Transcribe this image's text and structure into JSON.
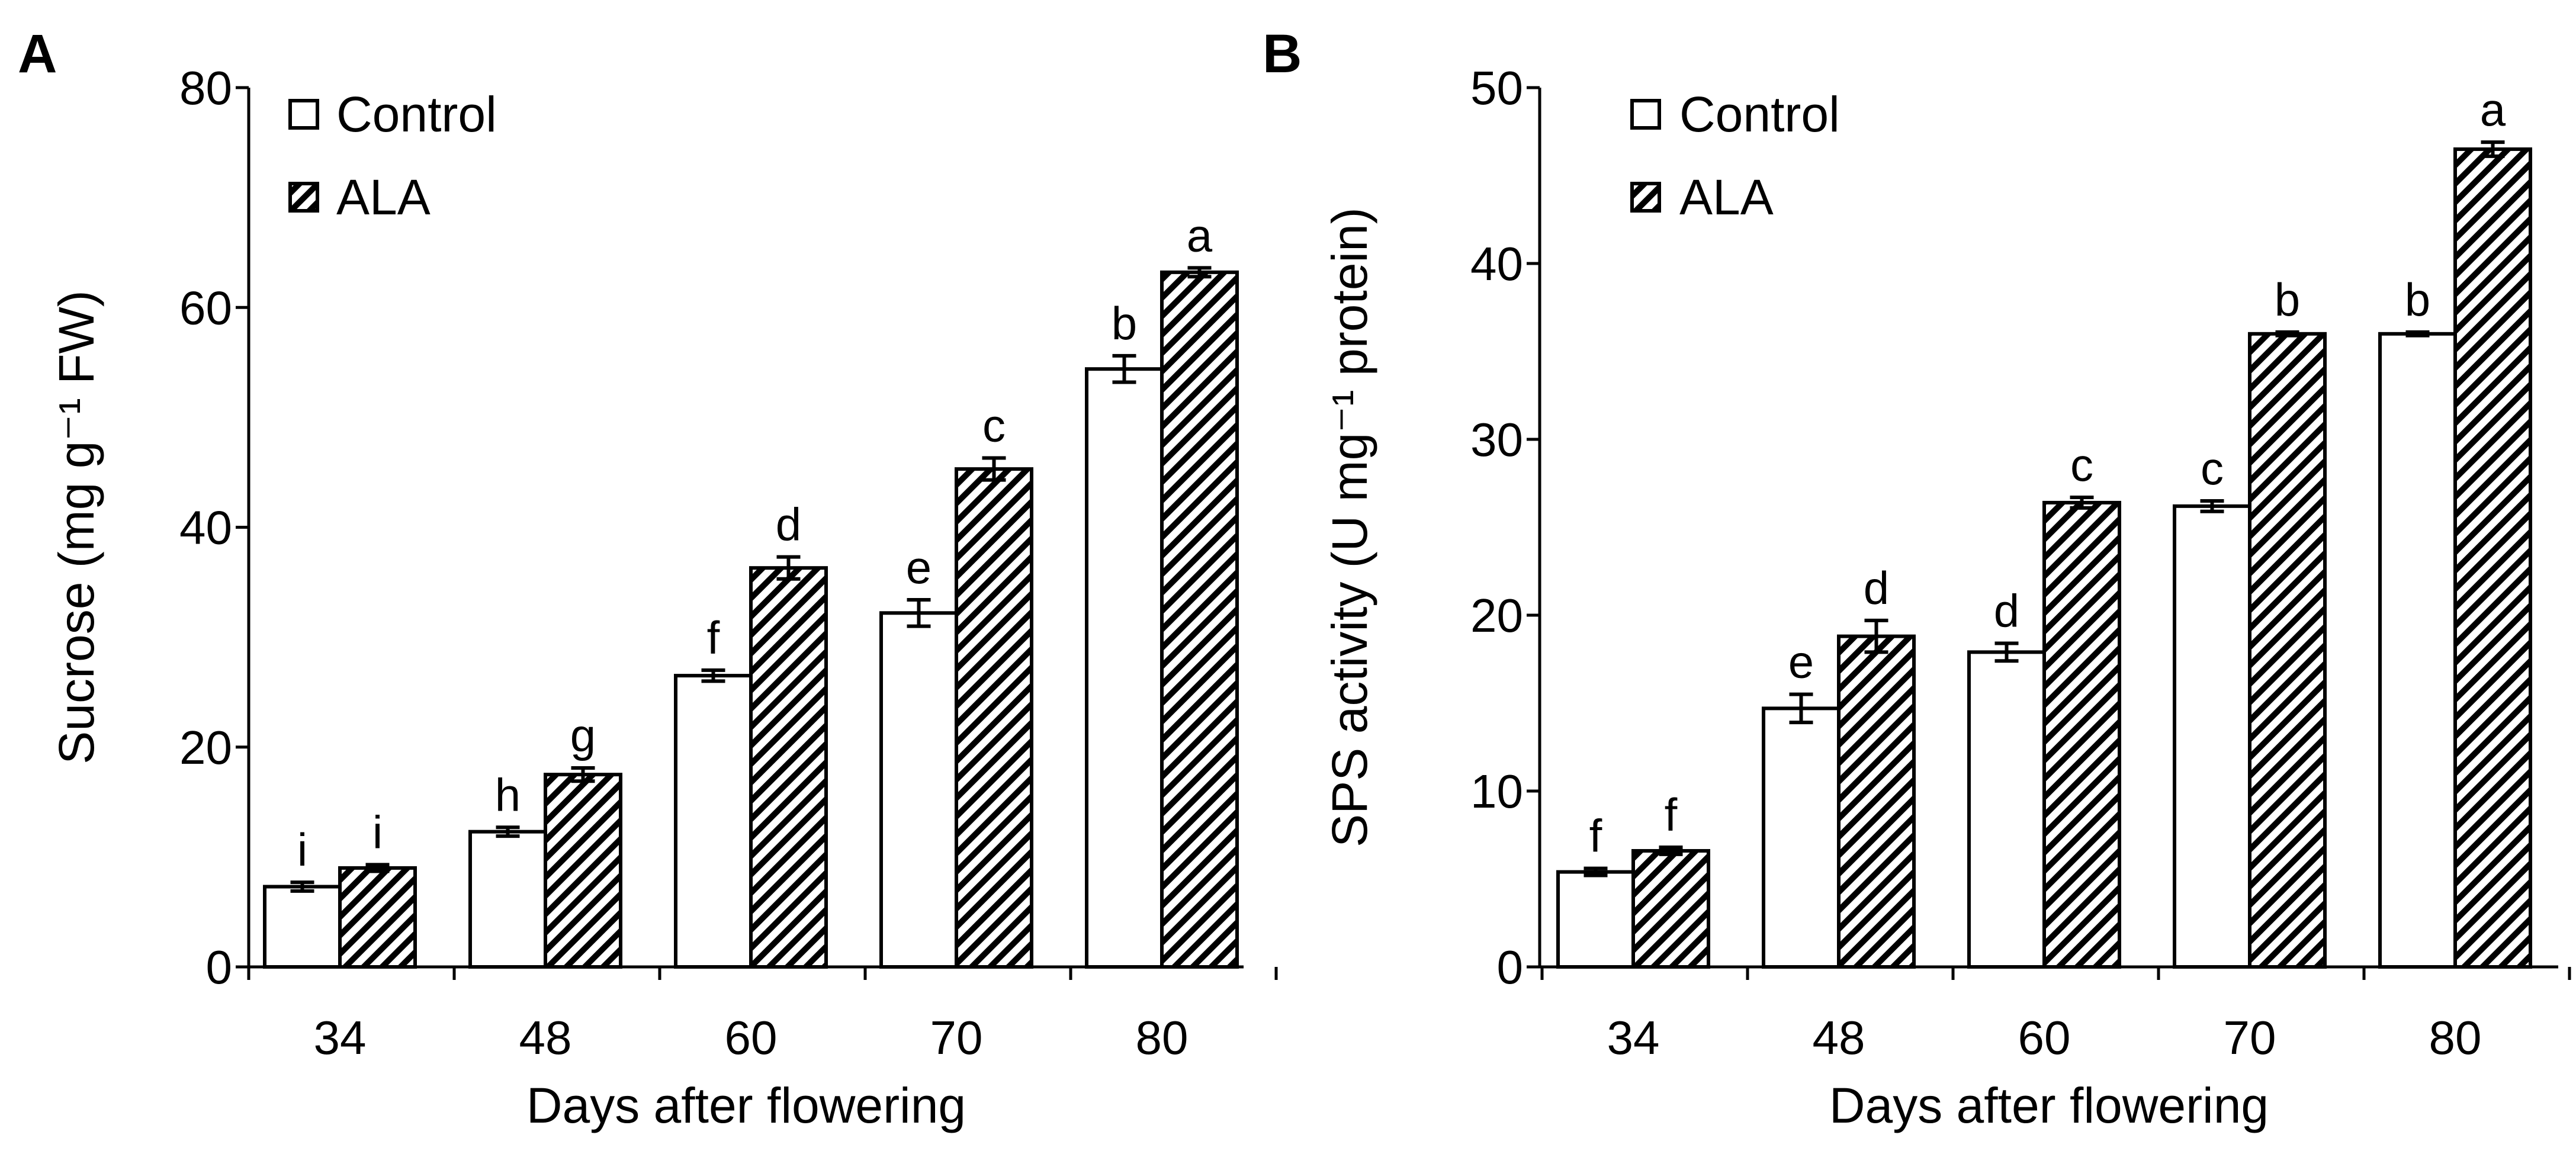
{
  "chart_data": [
    {
      "panel_label": "A",
      "type": "bar",
      "categories": [
        "34",
        "48",
        "60",
        "70",
        "80"
      ],
      "series": [
        {
          "name": "Control",
          "pattern": "none",
          "values": [
            7.3,
            12.3,
            26.5,
            32.2,
            54.4
          ],
          "errors": [
            0.4,
            0.4,
            0.5,
            1.2,
            1.2
          ],
          "letters": [
            "i",
            "h",
            "f",
            "e",
            "b"
          ]
        },
        {
          "name": "ALA",
          "pattern": "hatched",
          "values": [
            9.0,
            17.5,
            36.3,
            45.3,
            63.2
          ],
          "errors": [
            0.3,
            0.6,
            1.0,
            1.0,
            0.4
          ],
          "letters": [
            "i",
            "g",
            "d",
            "c",
            "a"
          ]
        }
      ],
      "xlabel": "Days after flowering",
      "ylabel": "Sucrose (mg g⁻¹ FW)",
      "ylim": [
        0,
        80
      ],
      "yticks": [
        0,
        20,
        40,
        60,
        80
      ],
      "legend_position": "top-left"
    },
    {
      "panel_label": "B",
      "type": "bar",
      "categories": [
        "34",
        "48",
        "60",
        "70",
        "80"
      ],
      "series": [
        {
          "name": "Control",
          "pattern": "none",
          "values": [
            5.4,
            14.7,
            17.9,
            26.2,
            36.0
          ],
          "errors": [
            0.2,
            0.8,
            0.5,
            0.3,
            0.1
          ],
          "letters": [
            "f",
            "e",
            "d",
            "c",
            "b"
          ]
        },
        {
          "name": "ALA",
          "pattern": "hatched",
          "values": [
            6.6,
            18.8,
            26.4,
            36.0,
            46.5
          ],
          "errors": [
            0.2,
            0.9,
            0.3,
            0.1,
            0.4
          ],
          "letters": [
            "f",
            "d",
            "c",
            "b",
            "a"
          ]
        }
      ],
      "xlabel": "Days after flowering",
      "ylabel": "SPS activity (U mg⁻¹ protein)",
      "ylim": [
        0,
        50
      ],
      "yticks": [
        0,
        10,
        20,
        30,
        40,
        50
      ],
      "legend_position": "top-left"
    }
  ],
  "colors": {
    "axis": "#000000",
    "control_fill": "#ffffff",
    "hatch": "#000000",
    "background": "#ffffff"
  }
}
